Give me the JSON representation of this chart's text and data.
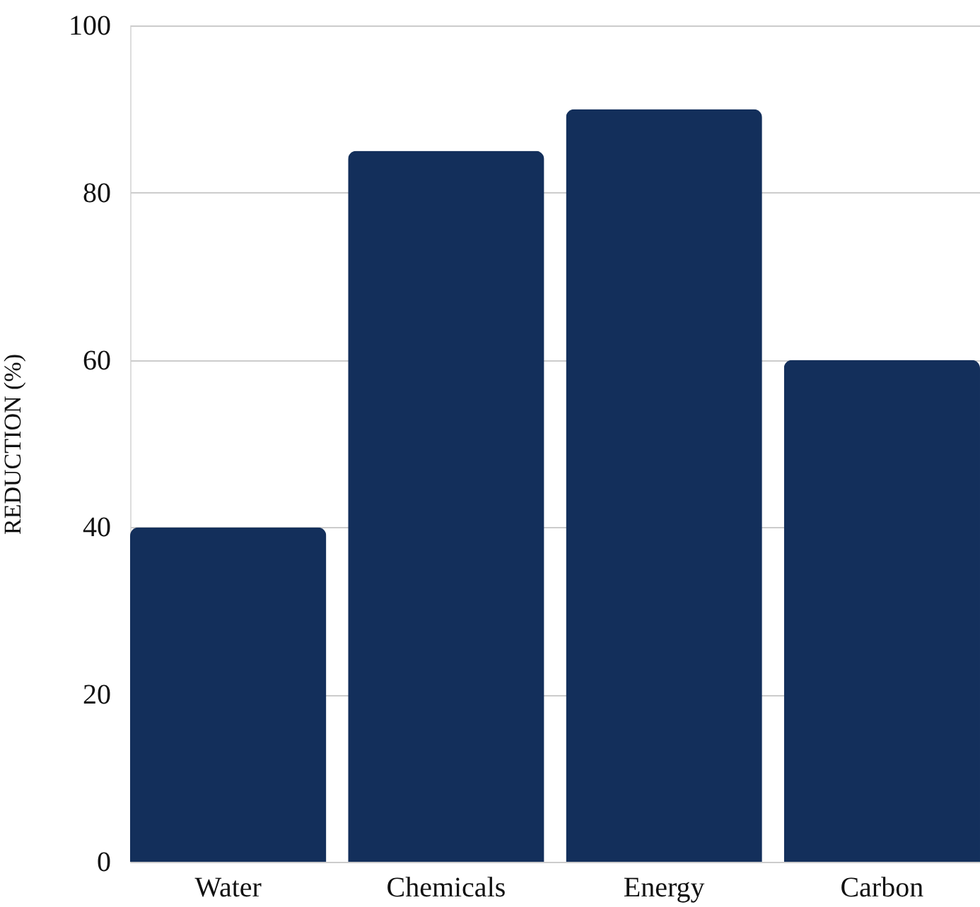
{
  "chart_data": {
    "type": "bar",
    "ylabel": "REDUCTION (%)",
    "categories": [
      "Water",
      "Chemicals",
      "Energy",
      "Carbon"
    ],
    "values": [
      40,
      85,
      90,
      60
    ],
    "color": "#132f5b",
    "ylim": [
      0,
      100
    ],
    "yticks": [
      0,
      20,
      40,
      60,
      80,
      100
    ],
    "grid": "y"
  }
}
